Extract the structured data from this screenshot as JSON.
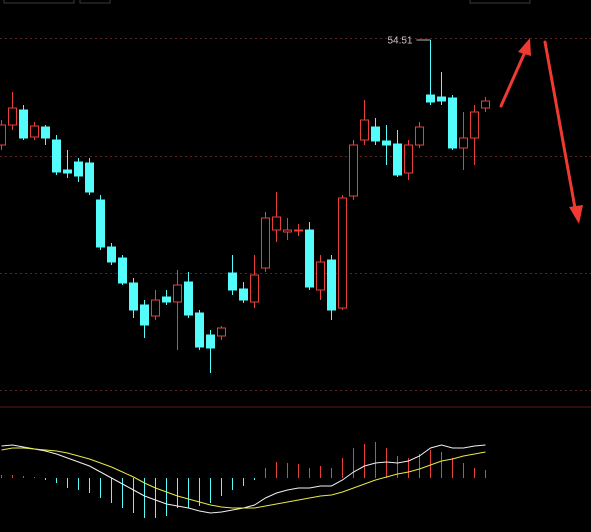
{
  "chart_data": [
    {
      "type": "candlestick",
      "annotation": "54.51",
      "up_color": "#e8413c",
      "down_color": "#54fcfc",
      "ylim": [
        47.21,
        55.31
      ],
      "ygrid": [
        54.55,
        52.19,
        49.85,
        47.51
      ],
      "open": [
        52.41,
        52.81,
        53.11,
        52.57,
        52.77,
        52.51,
        51.91,
        52.07,
        52.05,
        51.31,
        50.37,
        50.15,
        49.65,
        49.21,
        48.99,
        49.37,
        49.27,
        49.67,
        49.05,
        48.61,
        48.59,
        49.85,
        49.53,
        49.27,
        49.95,
        50.71,
        50.67,
        50.69,
        50.71,
        49.51,
        50.11,
        49.15,
        51.39,
        52.51,
        52.77,
        52.49,
        52.43,
        51.85,
        52.41,
        53.41,
        53.37,
        53.35,
        52.35,
        52.55,
        53.15
      ],
      "high": [
        52.91,
        53.47,
        53.21,
        52.87,
        52.81,
        52.61,
        52.31,
        52.15,
        52.15,
        51.41,
        50.45,
        50.21,
        49.75,
        49.31,
        49.51,
        49.51,
        49.91,
        49.87,
        49.11,
        48.71,
        48.79,
        50.21,
        49.67,
        50.21,
        51.07,
        51.47,
        50.95,
        50.83,
        50.87,
        50.21,
        50.21,
        51.41,
        52.51,
        53.31,
        52.95,
        52.81,
        52.71,
        52.51,
        52.87,
        54.51,
        53.87,
        53.41,
        53.07,
        53.21,
        53.37
      ],
      "low": [
        52.31,
        52.71,
        52.51,
        52.51,
        52.41,
        51.81,
        51.75,
        51.67,
        51.41,
        50.31,
        50.01,
        49.61,
        48.95,
        48.55,
        48.91,
        49.21,
        48.31,
        48.95,
        48.31,
        47.85,
        48.51,
        49.41,
        49.25,
        49.15,
        49.87,
        50.47,
        50.51,
        50.59,
        49.51,
        49.31,
        48.91,
        49.11,
        51.31,
        52.41,
        52.41,
        52.01,
        51.77,
        51.71,
        52.35,
        53.21,
        53.21,
        52.31,
        51.91,
        52.01,
        53.07
      ],
      "close": [
        52.81,
        53.15,
        52.55,
        52.79,
        52.55,
        51.87,
        51.85,
        51.79,
        51.47,
        50.37,
        50.07,
        49.65,
        49.11,
        48.81,
        49.31,
        49.27,
        49.61,
        49.01,
        48.37,
        48.35,
        48.75,
        49.51,
        49.31,
        49.81,
        50.95,
        50.97,
        50.71,
        50.71,
        49.57,
        50.07,
        49.11,
        51.35,
        52.41,
        52.91,
        52.49,
        52.41,
        51.81,
        52.41,
        52.77,
        53.27,
        53.29,
        52.35,
        52.55,
        53.07,
        53.29
      ]
    },
    {
      "type": "macd",
      "ylim": [
        -0.54,
        0.73
      ],
      "zero": 0,
      "pos_color": "#e8413c",
      "neg_color": "#54fcfc",
      "dif_color": "#f0f0f0",
      "dea_color": "#e8e84a",
      "histogram": [
        0.03,
        0.03,
        0.02,
        0.01,
        -0.02,
        -0.05,
        -0.1,
        -0.12,
        -0.15,
        -0.2,
        -0.25,
        -0.3,
        -0.35,
        -0.4,
        -0.4,
        -0.38,
        -0.3,
        -0.3,
        -0.28,
        -0.25,
        -0.18,
        -0.12,
        -0.08,
        -0.02,
        0.1,
        0.16,
        0.15,
        0.14,
        0.1,
        0.12,
        0.1,
        0.2,
        0.3,
        0.34,
        0.36,
        0.3,
        0.22,
        0.2,
        0.24,
        0.28,
        0.26,
        0.2,
        0.15,
        0.1,
        0.08
      ],
      "dif": [
        0.32,
        0.33,
        0.31,
        0.29,
        0.27,
        0.24,
        0.2,
        0.16,
        0.12,
        0.06,
        0.0,
        -0.06,
        -0.12,
        -0.18,
        -0.22,
        -0.26,
        -0.28,
        -0.3,
        -0.33,
        -0.35,
        -0.34,
        -0.32,
        -0.3,
        -0.27,
        -0.2,
        -0.15,
        -0.12,
        -0.1,
        -0.1,
        -0.08,
        -0.08,
        -0.02,
        0.06,
        0.12,
        0.15,
        0.16,
        0.15,
        0.17,
        0.22,
        0.3,
        0.33,
        0.3,
        0.3,
        0.32,
        0.33
      ],
      "dea": [
        0.28,
        0.3,
        0.3,
        0.29,
        0.28,
        0.27,
        0.25,
        0.22,
        0.19,
        0.15,
        0.11,
        0.06,
        0.01,
        -0.05,
        -0.1,
        -0.14,
        -0.18,
        -0.21,
        -0.24,
        -0.27,
        -0.29,
        -0.3,
        -0.3,
        -0.3,
        -0.28,
        -0.26,
        -0.24,
        -0.22,
        -0.2,
        -0.18,
        -0.17,
        -0.14,
        -0.1,
        -0.06,
        -0.02,
        0.01,
        0.04,
        0.06,
        0.09,
        0.13,
        0.17,
        0.19,
        0.22,
        0.24,
        0.26
      ]
    }
  ]
}
